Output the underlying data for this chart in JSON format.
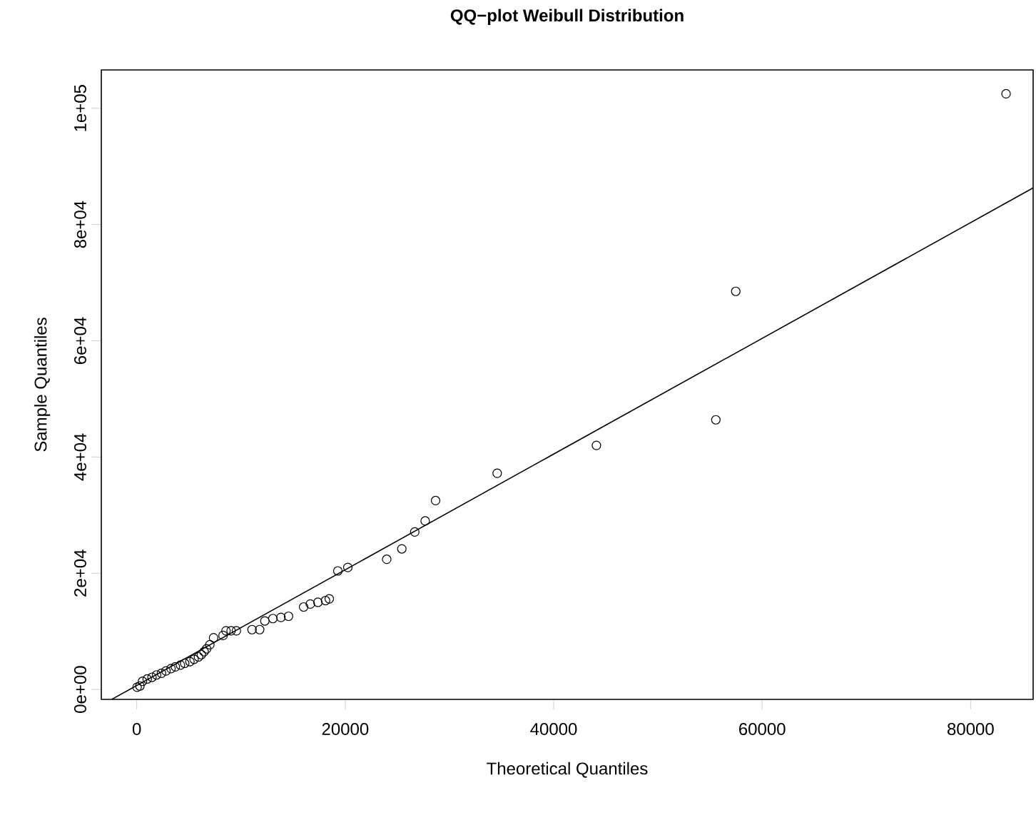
{
  "chart_data": {
    "type": "scatter",
    "title": "QQ−plot Weibull Distribution",
    "xlabel": "Theoretical Quantiles",
    "ylabel": "Sample Quantiles",
    "xlim": [
      -3400,
      86000
    ],
    "ylim": [
      -1700,
      106600
    ],
    "xticks": [
      0,
      20000,
      40000,
      60000,
      80000
    ],
    "yticks": [
      {
        "value": 0,
        "label": "0e+00"
      },
      {
        "value": 20000,
        "label": "2e+04"
      },
      {
        "value": 40000,
        "label": "4e+04"
      },
      {
        "value": 60000,
        "label": "6e+04"
      },
      {
        "value": 80000,
        "label": "8e+04"
      },
      {
        "value": 100000,
        "label": "1e+05"
      }
    ],
    "marker": "circle",
    "series": [
      {
        "color": "#000000",
        "x": [
          30,
          300,
          550,
          1000,
          1460,
          1900,
          2370,
          2800,
          3280,
          3700,
          4190,
          4600,
          5100,
          5500,
          5920,
          6200,
          6460,
          6700,
          7010,
          7370,
          8280,
          8560,
          9050,
          9560,
          11060,
          11790,
          12290,
          13060,
          13830,
          14560,
          16010,
          16650,
          17380,
          18110,
          18470,
          19290,
          20250,
          23980,
          25430,
          26670,
          27670,
          28670,
          34580,
          44100,
          55560,
          57470,
          83400
        ],
        "values": [
          400,
          600,
          1400,
          1800,
          2100,
          2500,
          2800,
          3200,
          3600,
          3900,
          4200,
          4500,
          4800,
          5200,
          5600,
          6000,
          6500,
          7000,
          7700,
          8900,
          9300,
          10100,
          10100,
          10100,
          10300,
          10300,
          11800,
          12200,
          12400,
          12600,
          14200,
          14700,
          15000,
          15300,
          15600,
          20400,
          21000,
          22400,
          24200,
          27100,
          29000,
          32500,
          37200,
          42000,
          46400,
          68500,
          102500
        ]
      },
      {
        "type": "line",
        "marker": "none",
        "color": "#000000",
        "x": [
          -2400,
          86000
        ],
        "values": [
          -1700,
          86300
        ]
      }
    ]
  }
}
